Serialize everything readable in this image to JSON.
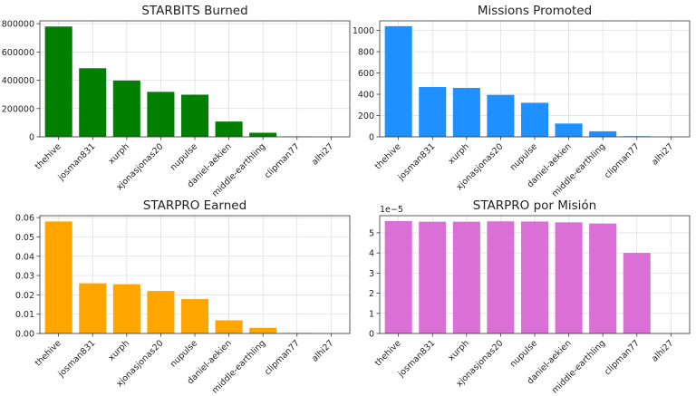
{
  "chart_data": [
    {
      "type": "bar",
      "title": "STARBITS Burned",
      "categories": [
        "thehive",
        "josman831",
        "xurph",
        "xjonasjonas20",
        "nupulse",
        "daniel-aekien",
        "middle-earthling",
        "clipman77",
        "alhi27"
      ],
      "values": [
        780000,
        485000,
        398000,
        318000,
        298000,
        108000,
        29000,
        3000,
        0
      ],
      "ylim": [
        0,
        820000
      ],
      "yticks": [
        0,
        200000,
        400000,
        600000,
        800000
      ],
      "ytick_labels": [
        "0",
        "200000",
        "400000",
        "600000",
        "800000"
      ],
      "color": "#007f00",
      "grid": true
    },
    {
      "type": "bar",
      "title": "Missions Promoted",
      "categories": [
        "thehive",
        "josman831",
        "xurph",
        "xjonasjonas20",
        "nupulse",
        "daniel-aekien",
        "middle-earthling",
        "clipman77",
        "alhi27"
      ],
      "values": [
        1040,
        468,
        460,
        394,
        320,
        125,
        52,
        6,
        0
      ],
      "ylim": [
        0,
        1090
      ],
      "yticks": [
        0,
        200,
        400,
        600,
        800,
        1000
      ],
      "ytick_labels": [
        "0",
        "200",
        "400",
        "600",
        "800",
        "1000"
      ],
      "color": "#1e90ff",
      "grid": true
    },
    {
      "type": "bar",
      "title": "STARPRO Earned",
      "categories": [
        "thehive",
        "josman831",
        "xurph",
        "xjonasjonas20",
        "nupulse",
        "daniel-aekien",
        "middle-earthling",
        "clipman77",
        "alhi27"
      ],
      "values": [
        0.058,
        0.026,
        0.0255,
        0.022,
        0.0178,
        0.0068,
        0.0029,
        0.0003,
        0
      ],
      "ylim": [
        0,
        0.061
      ],
      "yticks": [
        0,
        0.01,
        0.02,
        0.03,
        0.04,
        0.05,
        0.06
      ],
      "ytick_labels": [
        "0.00",
        "0.01",
        "0.02",
        "0.03",
        "0.04",
        "0.05",
        "0.06"
      ],
      "color": "#ffa500",
      "grid": true
    },
    {
      "type": "bar",
      "title": "STARPRO por Misión",
      "categories": [
        "thehive",
        "josman831",
        "xurph",
        "xjonasjonas20",
        "nupulse",
        "daniel-aekien",
        "middle-earthling",
        "clipman77",
        "alhi27"
      ],
      "values": [
        5.58,
        5.55,
        5.55,
        5.57,
        5.56,
        5.52,
        5.46,
        4.0,
        0
      ],
      "ylim": [
        0,
        5.85
      ],
      "yticks": [
        0,
        1,
        2,
        3,
        4,
        5
      ],
      "ytick_labels": [
        "0",
        "1",
        "2",
        "3",
        "4",
        "5"
      ],
      "offset_label": "1e−5",
      "color": "#da70d6",
      "grid": true
    }
  ]
}
